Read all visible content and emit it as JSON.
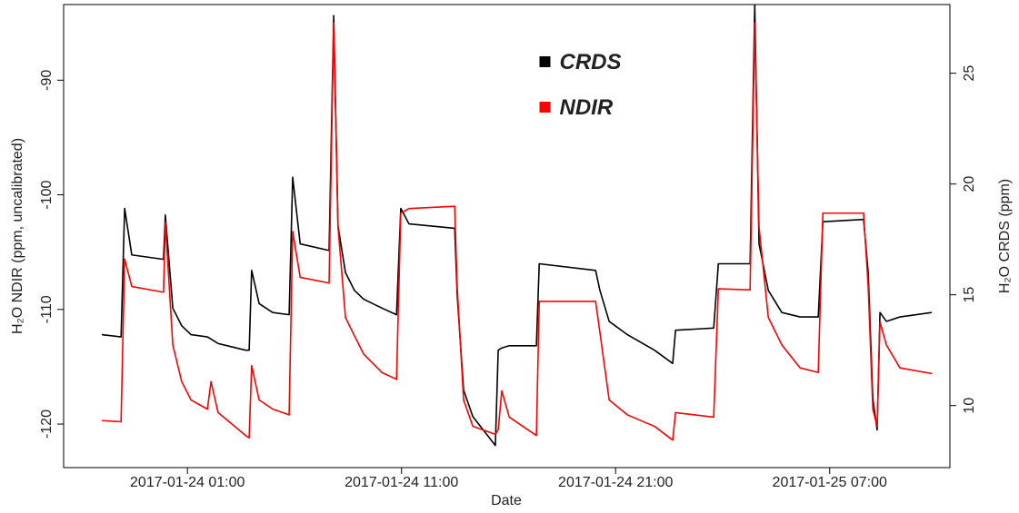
{
  "chart_data": {
    "type": "line",
    "xlabel": "Date",
    "ylabel": "H₂O NDIR (ppm, uncalibrated)",
    "y2label": "H₂O CRDS (ppm)",
    "x": [
      "2017-01-23 21:00",
      "2017-01-23 21:54",
      "2017-01-23 22:04",
      "2017-01-23 22:24",
      "2017-01-23 23:53",
      "2017-01-23 23:58",
      "2017-01-24 00:19",
      "2017-01-24 00:44",
      "2017-01-24 01:10",
      "2017-01-24 01:56",
      "2017-01-24 02:06",
      "2017-01-24 02:26",
      "2017-01-24 03:43",
      "2017-01-24 03:53",
      "2017-01-24 04:00",
      "2017-01-24 04:21",
      "2017-01-24 04:59",
      "2017-01-24 05:45",
      "2017-01-24 05:55",
      "2017-01-24 06:16",
      "2017-01-24 07:37",
      "2017-01-24 07:50",
      "2017-01-24 08:02",
      "2017-01-24 08:23",
      "2017-01-24 08:48",
      "2017-01-24 09:14",
      "2017-01-24 10:05",
      "2017-01-24 10:46",
      "2017-01-24 10:58",
      "2017-01-24 11:21",
      "2017-01-24 13:29",
      "2017-01-24 13:36",
      "2017-01-24 13:54",
      "2017-01-24 14:20",
      "2017-01-24 15:23",
      "2017-01-24 15:31",
      "2017-01-24 15:41",
      "2017-01-24 16:02",
      "2017-01-24 17:18",
      "2017-01-24 17:26",
      "2017-01-24 20:04",
      "2017-01-24 20:16",
      "2017-01-24 20:42",
      "2017-01-24 21:33",
      "2017-01-24 22:49",
      "2017-01-24 23:40",
      "2017-01-24 23:48",
      "2017-01-25 01:35",
      "2017-01-25 01:48",
      "2017-01-25 03:17",
      "2017-01-25 03:30",
      "2017-01-25 03:42",
      "2017-01-25 04:08",
      "2017-01-25 04:46",
      "2017-01-25 05:37",
      "2017-01-25 06:28",
      "2017-01-25 06:41",
      "2017-01-25 08:35",
      "2017-01-25 08:48",
      "2017-01-25 09:01",
      "2017-01-25 09:13",
      "2017-01-25 09:21",
      "2017-01-25 09:39",
      "2017-01-25 10:17",
      "2017-01-25 11:46"
    ],
    "series": [
      {
        "name": "CRDS",
        "color": "#000000",
        "axis": "y2",
        "values": [
          13.2,
          13.1,
          18.9,
          16.8,
          16.6,
          18.6,
          14.4,
          13.6,
          13.2,
          13.1,
          13.0,
          12.8,
          12.5,
          12.5,
          16.1,
          14.6,
          14.2,
          14.1,
          20.3,
          17.3,
          17.0,
          27.6,
          18.1,
          16.0,
          15.2,
          14.8,
          14.4,
          14.1,
          18.9,
          18.2,
          18.0,
          15.0,
          10.7,
          9.5,
          8.2,
          12.5,
          12.6,
          12.7,
          12.7,
          16.4,
          16.1,
          15.2,
          13.8,
          13.2,
          12.5,
          11.9,
          13.4,
          13.5,
          16.4,
          16.4,
          28.1,
          17.3,
          15.2,
          14.2,
          14.0,
          14.0,
          18.3,
          18.4,
          16.0,
          10.3,
          8.9,
          14.2,
          13.8,
          14.0,
          14.2
        ]
      },
      {
        "name": "NDIR",
        "color": "#ff0000",
        "axis": "y",
        "values": [
          -119.7,
          -119.8,
          -105.6,
          -108.0,
          -108.5,
          -102.4,
          -113.1,
          -116.3,
          -117.9,
          -118.7,
          -116.3,
          -119.0,
          -121.0,
          -121.2,
          -114.9,
          -117.9,
          -118.7,
          -119.2,
          -103.2,
          -107.2,
          -107.7,
          -85.0,
          -102.8,
          -110.7,
          -112.3,
          -113.9,
          -115.5,
          -116.1,
          -101.6,
          -101.2,
          -101.0,
          -108.0,
          -117.9,
          -120.2,
          -120.9,
          -120.5,
          -117.1,
          -119.4,
          -121.0,
          -109.3,
          -109.3,
          -112.0,
          -117.9,
          -119.2,
          -120.2,
          -121.4,
          -119.0,
          -119.4,
          -108.2,
          -108.3,
          -85.0,
          -102.8,
          -110.7,
          -113.1,
          -115.1,
          -115.5,
          -101.6,
          -101.6,
          -108.0,
          -118.7,
          -120.2,
          -111.1,
          -113.1,
          -115.1,
          -115.6
        ]
      }
    ],
    "xlim": [
      "2017-01-23 19:13",
      "2017-01-25 12:37"
    ],
    "xticks": [
      "2017-01-24 01:00",
      "2017-01-24 11:00",
      "2017-01-24 21:00",
      "2017-01-25 07:00"
    ],
    "ylim": [
      -123.8,
      -83.4
    ],
    "yticks": [
      -120,
      -110,
      -100,
      -90
    ],
    "y2lim": [
      7.2,
      28.1
    ],
    "y2ticks": [
      10,
      15,
      20,
      25
    ],
    "legend": "top-center",
    "grid": false
  }
}
